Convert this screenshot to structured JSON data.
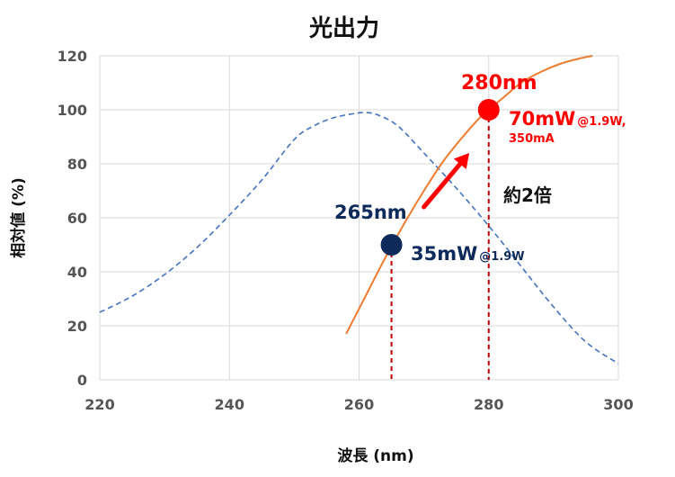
{
  "chart_data": {
    "type": "line",
    "title": "光出力",
    "xlabel": "波長 (nm)",
    "ylabel": "相対値 (%)",
    "xlim": [
      220,
      300
    ],
    "ylim": [
      0,
      120
    ],
    "xticks": [
      220,
      240,
      260,
      280,
      300
    ],
    "yticks": [
      0,
      20,
      40,
      60,
      80,
      100,
      120
    ],
    "grid": true,
    "series": [
      {
        "style": "dashed",
        "color": "#4472c4",
        "points": [
          [
            220,
            25
          ],
          [
            225,
            31
          ],
          [
            230,
            39
          ],
          [
            235,
            49
          ],
          [
            240,
            61
          ],
          [
            245,
            74
          ],
          [
            250,
            89
          ],
          [
            253,
            94
          ],
          [
            256,
            97
          ],
          [
            259,
            98.5
          ],
          [
            261,
            99
          ],
          [
            263,
            98
          ],
          [
            266,
            94
          ],
          [
            270,
            84
          ],
          [
            275,
            71
          ],
          [
            280,
            57
          ],
          [
            285,
            42
          ],
          [
            290,
            27
          ],
          [
            295,
            14
          ],
          [
            300,
            6
          ]
        ]
      },
      {
        "style": "solid",
        "color": "#ed7d31",
        "points": [
          [
            258,
            17
          ],
          [
            261,
            31
          ],
          [
            264,
            45
          ],
          [
            267,
            58
          ],
          [
            270,
            70
          ],
          [
            273,
            81
          ],
          [
            276,
            90
          ],
          [
            279,
            98
          ],
          [
            282,
            104
          ],
          [
            285,
            110
          ],
          [
            288,
            114
          ],
          [
            291,
            117
          ],
          [
            294,
            119
          ],
          [
            296,
            120
          ]
        ]
      }
    ],
    "markers": [
      {
        "x": 265,
        "y": 50,
        "color": "#0d2a5a"
      },
      {
        "x": 280,
        "y": 100,
        "color": "#ff0000"
      }
    ],
    "arrow": {
      "from": [
        270,
        64
      ],
      "to": [
        277,
        84
      ],
      "color": "#ff0000"
    },
    "annotations": {
      "red_wavelength": "280nm",
      "red_power_main": "70mW",
      "red_power_sub": "@1.9W,",
      "red_power_sub2": "350mA",
      "navy_wavelength": "265nm",
      "navy_power_main": "35mW",
      "navy_power_sub": "@1.9W",
      "ratio": "約2倍"
    }
  }
}
